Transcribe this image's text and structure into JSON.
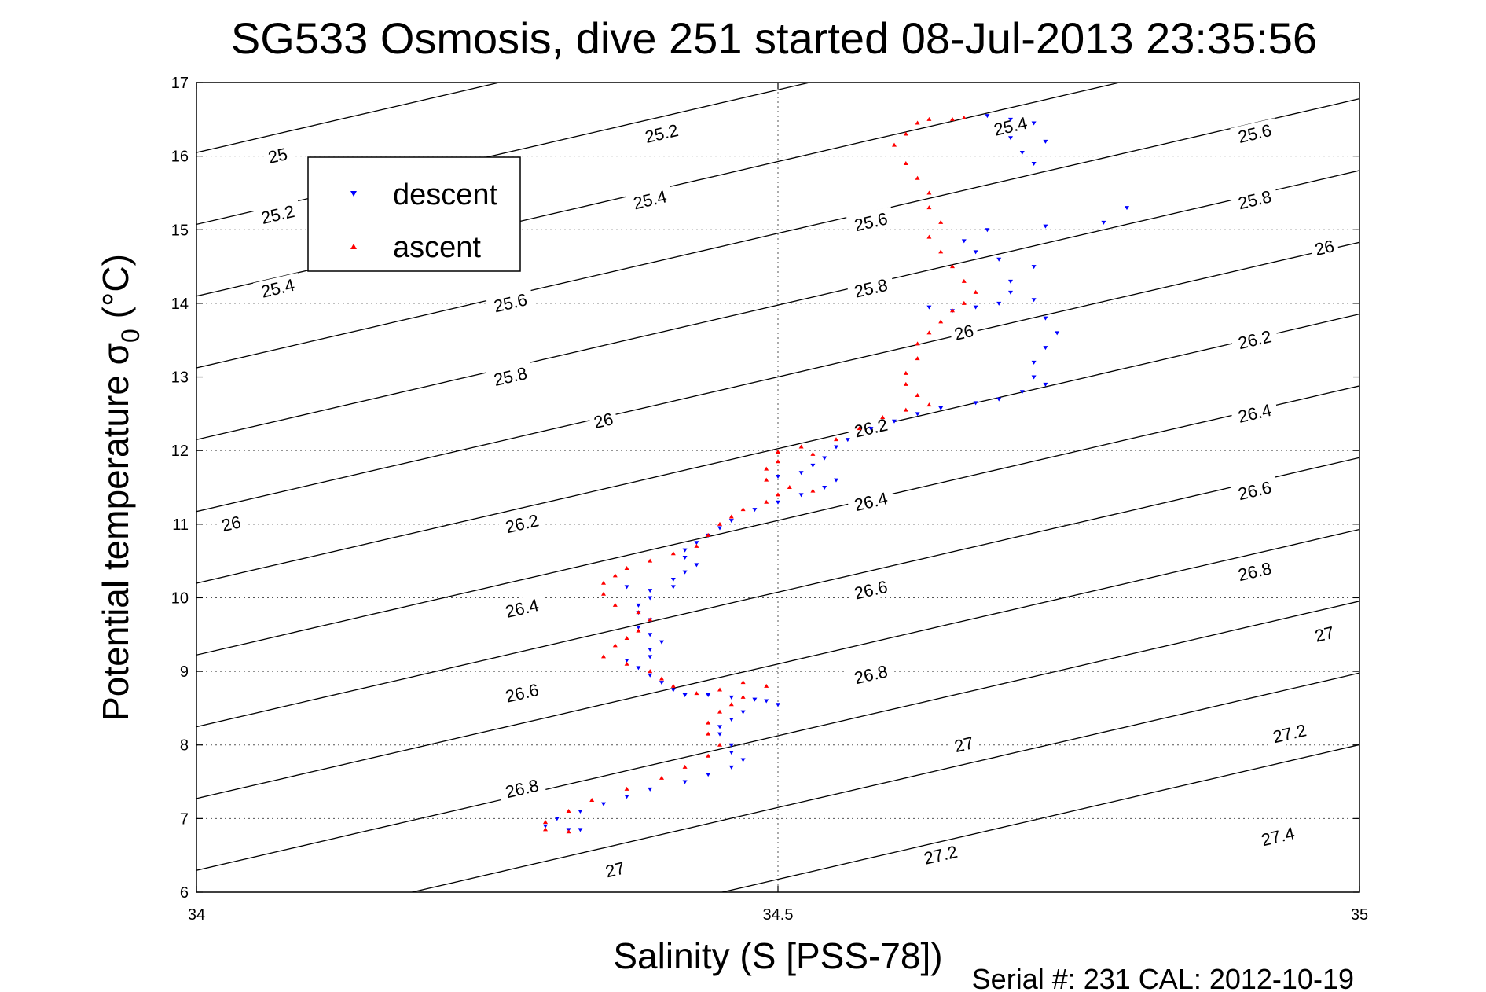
{
  "chart_data": {
    "type": "scatter",
    "title": "SG533 Osmosis, dive 251 started 08-Jul-2013 23:35:56",
    "xlabel": "Salinity (S [PSS-78])",
    "ylabel_main": "Potential temperature σ",
    "ylabel_sub": "0",
    "ylabel_unit": " (°C)",
    "footer": "Serial #: 231  CAL: 2012-10-19",
    "xlim": [
      34,
      35
    ],
    "ylim": [
      6,
      17
    ],
    "x_ticks": [
      "34",
      "34.5",
      "35"
    ],
    "y_ticks": [
      "6",
      "7",
      "8",
      "9",
      "10",
      "11",
      "12",
      "13",
      "14",
      "15",
      "16",
      "17"
    ],
    "grid": "dotted",
    "legend_position": "top-left",
    "colors": {
      "descent": "#0000ff",
      "ascent": "#ff0000",
      "contour": "#000000"
    },
    "series": [
      {
        "name": "descent",
        "marker": "triangle-down",
        "points": [
          [
            34.68,
            16.55
          ],
          [
            34.7,
            16.5
          ],
          [
            34.72,
            16.45
          ],
          [
            34.7,
            16.25
          ],
          [
            34.73,
            16.2
          ],
          [
            34.71,
            16.05
          ],
          [
            34.72,
            15.9
          ],
          [
            34.78,
            15.1
          ],
          [
            34.8,
            15.3
          ],
          [
            34.73,
            15.05
          ],
          [
            34.68,
            15.0
          ],
          [
            34.66,
            14.85
          ],
          [
            34.67,
            14.7
          ],
          [
            34.69,
            14.6
          ],
          [
            34.72,
            14.5
          ],
          [
            34.7,
            14.3
          ],
          [
            34.7,
            14.15
          ],
          [
            34.72,
            14.05
          ],
          [
            34.69,
            14.0
          ],
          [
            34.67,
            13.95
          ],
          [
            34.65,
            13.9
          ],
          [
            34.63,
            13.95
          ],
          [
            34.73,
            13.8
          ],
          [
            34.74,
            13.6
          ],
          [
            34.73,
            13.4
          ],
          [
            34.72,
            13.2
          ],
          [
            34.72,
            13.0
          ],
          [
            34.73,
            12.9
          ],
          [
            34.71,
            12.8
          ],
          [
            34.69,
            12.7
          ],
          [
            34.67,
            12.65
          ],
          [
            34.64,
            12.58
          ],
          [
            34.62,
            12.5
          ],
          [
            34.6,
            12.4
          ],
          [
            34.58,
            12.3
          ],
          [
            34.56,
            12.15
          ],
          [
            34.55,
            12.05
          ],
          [
            34.54,
            11.9
          ],
          [
            34.53,
            11.8
          ],
          [
            34.52,
            11.7
          ],
          [
            34.5,
            11.65
          ],
          [
            34.55,
            11.6
          ],
          [
            34.54,
            11.5
          ],
          [
            34.52,
            11.4
          ],
          [
            34.5,
            11.3
          ],
          [
            34.48,
            11.2
          ],
          [
            34.46,
            11.05
          ],
          [
            34.45,
            10.95
          ],
          [
            34.44,
            10.85
          ],
          [
            34.43,
            10.75
          ],
          [
            34.42,
            10.65
          ],
          [
            34.42,
            10.55
          ],
          [
            34.43,
            10.45
          ],
          [
            34.42,
            10.35
          ],
          [
            34.41,
            10.25
          ],
          [
            34.41,
            10.15
          ],
          [
            34.39,
            10.1
          ],
          [
            34.37,
            10.15
          ],
          [
            34.39,
            10.0
          ],
          [
            34.38,
            9.9
          ],
          [
            34.38,
            9.8
          ],
          [
            34.39,
            9.7
          ],
          [
            34.38,
            9.6
          ],
          [
            34.39,
            9.5
          ],
          [
            34.4,
            9.4
          ],
          [
            34.39,
            9.3
          ],
          [
            34.39,
            9.2
          ],
          [
            34.37,
            9.15
          ],
          [
            34.38,
            9.05
          ],
          [
            34.39,
            8.95
          ],
          [
            34.4,
            8.85
          ],
          [
            34.41,
            8.75
          ],
          [
            34.42,
            8.68
          ],
          [
            34.44,
            8.68
          ],
          [
            34.46,
            8.65
          ],
          [
            34.48,
            8.62
          ],
          [
            34.49,
            8.6
          ],
          [
            34.5,
            8.55
          ],
          [
            34.47,
            8.45
          ],
          [
            34.46,
            8.35
          ],
          [
            34.45,
            8.25
          ],
          [
            34.45,
            8.15
          ],
          [
            34.46,
            8.0
          ],
          [
            34.46,
            7.9
          ],
          [
            34.47,
            7.8
          ],
          [
            34.46,
            7.7
          ],
          [
            34.44,
            7.6
          ],
          [
            34.42,
            7.5
          ],
          [
            34.39,
            7.4
          ],
          [
            34.37,
            7.3
          ],
          [
            34.35,
            7.2
          ],
          [
            34.33,
            7.1
          ],
          [
            34.31,
            7.0
          ],
          [
            34.3,
            6.9
          ],
          [
            34.32,
            6.85
          ],
          [
            34.33,
            6.85
          ]
        ]
      },
      {
        "name": "ascent",
        "marker": "triangle-up",
        "points": [
          [
            34.63,
            16.5
          ],
          [
            34.65,
            16.5
          ],
          [
            34.66,
            16.52
          ],
          [
            34.62,
            16.45
          ],
          [
            34.61,
            16.3
          ],
          [
            34.6,
            16.15
          ],
          [
            34.61,
            15.9
          ],
          [
            34.62,
            15.7
          ],
          [
            34.63,
            15.5
          ],
          [
            34.63,
            15.3
          ],
          [
            34.64,
            15.1
          ],
          [
            34.63,
            14.9
          ],
          [
            34.64,
            14.7
          ],
          [
            34.65,
            14.5
          ],
          [
            34.66,
            14.3
          ],
          [
            34.67,
            14.15
          ],
          [
            34.66,
            14.0
          ],
          [
            34.65,
            13.9
          ],
          [
            34.64,
            13.75
          ],
          [
            34.63,
            13.6
          ],
          [
            34.62,
            13.45
          ],
          [
            34.62,
            13.25
          ],
          [
            34.61,
            13.05
          ],
          [
            34.61,
            12.9
          ],
          [
            34.62,
            12.75
          ],
          [
            34.63,
            12.62
          ],
          [
            34.61,
            12.55
          ],
          [
            34.59,
            12.45
          ],
          [
            34.57,
            12.3
          ],
          [
            34.55,
            12.15
          ],
          [
            34.52,
            12.05
          ],
          [
            34.5,
            11.98
          ],
          [
            34.53,
            11.95
          ],
          [
            34.5,
            11.85
          ],
          [
            34.49,
            11.75
          ],
          [
            34.49,
            11.6
          ],
          [
            34.51,
            11.5
          ],
          [
            34.53,
            11.45
          ],
          [
            34.5,
            11.4
          ],
          [
            34.49,
            11.3
          ],
          [
            34.47,
            11.2
          ],
          [
            34.46,
            11.1
          ],
          [
            34.45,
            11.0
          ],
          [
            34.44,
            10.85
          ],
          [
            34.43,
            10.7
          ],
          [
            34.41,
            10.6
          ],
          [
            34.39,
            10.5
          ],
          [
            34.37,
            10.4
          ],
          [
            34.36,
            10.3
          ],
          [
            34.35,
            10.2
          ],
          [
            34.35,
            10.05
          ],
          [
            34.36,
            9.9
          ],
          [
            34.38,
            9.8
          ],
          [
            34.39,
            9.7
          ],
          [
            34.38,
            9.55
          ],
          [
            34.37,
            9.45
          ],
          [
            34.36,
            9.35
          ],
          [
            34.35,
            9.2
          ],
          [
            34.37,
            9.1
          ],
          [
            34.39,
            9.0
          ],
          [
            34.4,
            8.9
          ],
          [
            34.41,
            8.8
          ],
          [
            34.43,
            8.7
          ],
          [
            34.45,
            8.75
          ],
          [
            34.47,
            8.85
          ],
          [
            34.49,
            8.8
          ],
          [
            34.47,
            8.65
          ],
          [
            34.46,
            8.55
          ],
          [
            34.45,
            8.45
          ],
          [
            34.44,
            8.3
          ],
          [
            34.44,
            8.15
          ],
          [
            34.45,
            8.0
          ],
          [
            34.44,
            7.85
          ],
          [
            34.42,
            7.7
          ],
          [
            34.4,
            7.55
          ],
          [
            34.37,
            7.4
          ],
          [
            34.34,
            7.25
          ],
          [
            34.32,
            7.1
          ],
          [
            34.3,
            6.95
          ],
          [
            34.3,
            6.85
          ],
          [
            34.32,
            6.82
          ]
        ]
      }
    ],
    "contour_labels": [
      {
        "text": "25",
        "x": 34.07,
        "y": 16.0
      },
      {
        "text": "25.2",
        "x": 34.07,
        "y": 15.2
      },
      {
        "text": "25.4",
        "x": 34.07,
        "y": 14.2
      },
      {
        "text": "26",
        "x": 34.03,
        "y": 11.0
      },
      {
        "text": "25.2",
        "x": 34.4,
        "y": 16.3
      },
      {
        "text": "25.4",
        "x": 34.39,
        "y": 15.4
      },
      {
        "text": "25.6",
        "x": 34.27,
        "y": 14.0
      },
      {
        "text": "25.8",
        "x": 34.27,
        "y": 13.0
      },
      {
        "text": "26",
        "x": 34.35,
        "y": 12.4
      },
      {
        "text": "26.2",
        "x": 34.28,
        "y": 11.0
      },
      {
        "text": "26.4",
        "x": 34.28,
        "y": 9.85
      },
      {
        "text": "26.6",
        "x": 34.28,
        "y": 8.7
      },
      {
        "text": "26.8",
        "x": 34.28,
        "y": 7.4
      },
      {
        "text": "27",
        "x": 34.36,
        "y": 6.3
      },
      {
        "text": "25.4",
        "x": 34.7,
        "y": 16.4
      },
      {
        "text": "25.6",
        "x": 34.58,
        "y": 15.1
      },
      {
        "text": "25.8",
        "x": 34.58,
        "y": 14.2
      },
      {
        "text": "26",
        "x": 34.66,
        "y": 13.6
      },
      {
        "text": "26.2",
        "x": 34.58,
        "y": 12.3
      },
      {
        "text": "26.4",
        "x": 34.58,
        "y": 11.3
      },
      {
        "text": "26.6",
        "x": 34.58,
        "y": 10.1
      },
      {
        "text": "26.8",
        "x": 34.58,
        "y": 8.95
      },
      {
        "text": "27",
        "x": 34.66,
        "y": 8.0
      },
      {
        "text": "27.2",
        "x": 34.64,
        "y": 6.5
      },
      {
        "text": "25.6",
        "x": 34.91,
        "y": 16.3
      },
      {
        "text": "25.8",
        "x": 34.91,
        "y": 15.4
      },
      {
        "text": "26",
        "x": 34.97,
        "y": 14.75
      },
      {
        "text": "26.2",
        "x": 34.91,
        "y": 13.5
      },
      {
        "text": "26.4",
        "x": 34.91,
        "y": 12.5
      },
      {
        "text": "26.6",
        "x": 34.91,
        "y": 11.45
      },
      {
        "text": "26.8",
        "x": 34.91,
        "y": 10.35
      },
      {
        "text": "27",
        "x": 34.97,
        "y": 9.5
      },
      {
        "text": "27.2",
        "x": 34.94,
        "y": 8.15
      },
      {
        "text": "27.4",
        "x": 34.93,
        "y": 6.75
      }
    ],
    "legend": [
      {
        "label": "descent"
      },
      {
        "label": "ascent"
      }
    ]
  }
}
